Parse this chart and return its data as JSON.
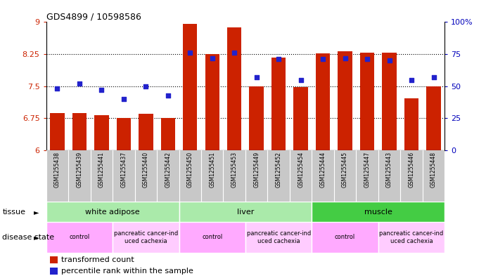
{
  "title": "GDS4899 / 10598586",
  "samples": [
    "GSM1255438",
    "GSM1255439",
    "GSM1255441",
    "GSM1255437",
    "GSM1255440",
    "GSM1255442",
    "GSM1255450",
    "GSM1255451",
    "GSM1255453",
    "GSM1255449",
    "GSM1255452",
    "GSM1255454",
    "GSM1255444",
    "GSM1255445",
    "GSM1255447",
    "GSM1255443",
    "GSM1255446",
    "GSM1255448"
  ],
  "red_values": [
    6.87,
    6.87,
    6.82,
    6.75,
    6.85,
    6.75,
    8.95,
    8.25,
    8.87,
    7.5,
    8.17,
    7.48,
    8.27,
    8.32,
    8.28,
    8.28,
    7.22,
    7.5
  ],
  "blue_pct": [
    48,
    52,
    47,
    40,
    50,
    43,
    76,
    72,
    76,
    57,
    71,
    55,
    71,
    72,
    71,
    70,
    55,
    57
  ],
  "ylim_left": [
    6,
    9
  ],
  "ylim_right": [
    0,
    100
  ],
  "yticks_left": [
    6,
    6.75,
    7.5,
    8.25,
    9
  ],
  "ytick_labels_left": [
    "6",
    "6.75",
    "7.5",
    "8.25",
    "9"
  ],
  "yticks_right": [
    0,
    25,
    50,
    75,
    100
  ],
  "ytick_labels_right": [
    "0",
    "25",
    "50",
    "75",
    "100%"
  ],
  "tissue_bounds": [
    {
      "start": 0,
      "end": 6,
      "label": "white adipose",
      "color": "#aaeaaa"
    },
    {
      "start": 6,
      "end": 12,
      "label": "liver",
      "color": "#aaeaaa"
    },
    {
      "start": 12,
      "end": 18,
      "label": "muscle",
      "color": "#44cc44"
    }
  ],
  "disease_bounds": [
    {
      "start": 0,
      "end": 3,
      "label": "control",
      "color": "#ffaaff"
    },
    {
      "start": 3,
      "end": 6,
      "label": "pancreatic cancer-ind\nuced cachexia",
      "color": "#ffccff"
    },
    {
      "start": 6,
      "end": 9,
      "label": "control",
      "color": "#ffaaff"
    },
    {
      "start": 9,
      "end": 12,
      "label": "pancreatic cancer-ind\nuced cachexia",
      "color": "#ffccff"
    },
    {
      "start": 12,
      "end": 15,
      "label": "control",
      "color": "#ffaaff"
    },
    {
      "start": 15,
      "end": 18,
      "label": "pancreatic cancer-ind\nuced cachexia",
      "color": "#ffccff"
    }
  ],
  "bar_color": "#CC2200",
  "dot_color": "#2222CC",
  "sample_bg": "#C8C8C8",
  "tick_color_left": "#CC2200",
  "tick_color_right": "#0000BB"
}
